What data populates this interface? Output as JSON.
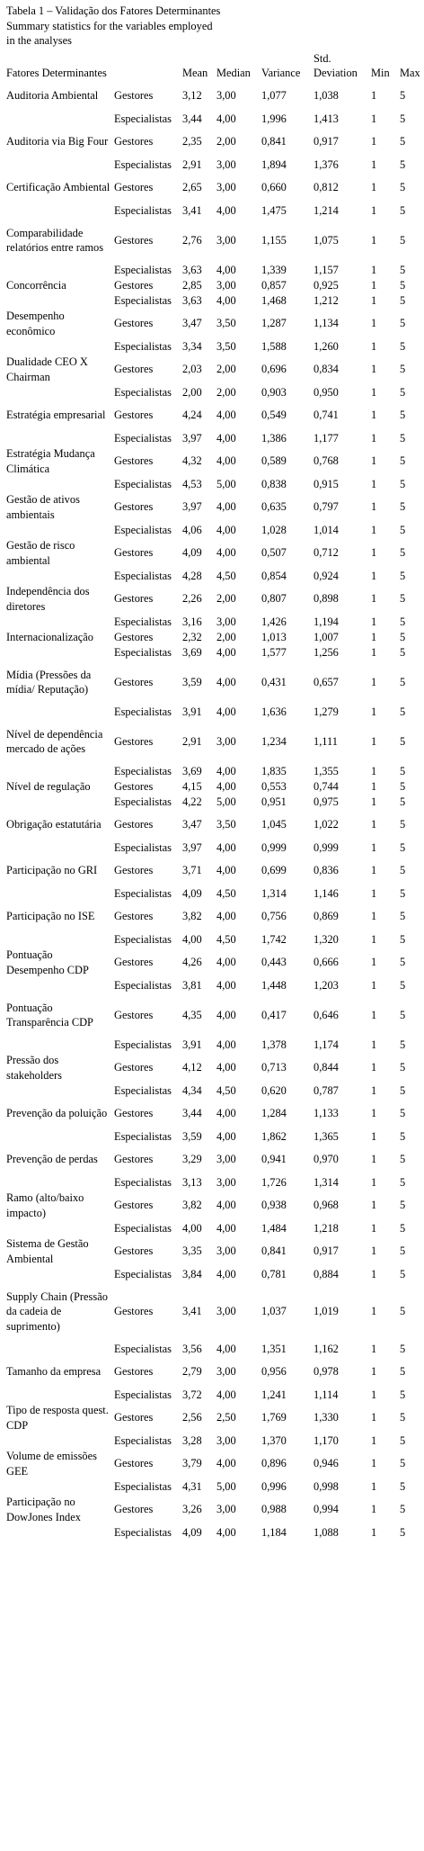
{
  "caption": {
    "line1": "Tabela 1 – Validação dos Fatores Determinantes",
    "line2": "Summary statistics for the variables employed",
    "line3": "in the analyses"
  },
  "columns": [
    "Fatores Determinantes",
    "",
    "Mean",
    "Median",
    "Variance",
    "Std. Deviation",
    "Min",
    "Max"
  ],
  "rows": [
    {
      "factor": "Auditoria Ambiental",
      "group": "Gestores",
      "mean": "3,12",
      "median": "3,00",
      "variance": "1,077",
      "sd": "1,038",
      "min": "1",
      "max": "5"
    },
    {
      "factor": "",
      "group": "Especialistas",
      "mean": "3,44",
      "median": "4,00",
      "variance": "1,996",
      "sd": "1,413",
      "min": "1",
      "max": "5"
    },
    {
      "factor": "Auditoria via Big Four",
      "group": "Gestores",
      "mean": "2,35",
      "median": "2,00",
      "variance": "0,841",
      "sd": "0,917",
      "min": "1",
      "max": "5"
    },
    {
      "factor": "",
      "group": "Especialistas",
      "mean": "2,91",
      "median": "3,00",
      "variance": "1,894",
      "sd": "1,376",
      "min": "1",
      "max": "5"
    },
    {
      "factor": "Certificação Ambiental",
      "group": "Gestores",
      "mean": "2,65",
      "median": "3,00",
      "variance": "0,660",
      "sd": "0,812",
      "min": "1",
      "max": "5"
    },
    {
      "factor": "",
      "group": "Especialistas",
      "mean": "3,41",
      "median": "4,00",
      "variance": "1,475",
      "sd": "1,214",
      "min": "1",
      "max": "5"
    },
    {
      "factor": "Comparabilidade relatórios entre ramos",
      "group": "Gestores",
      "mean": "2,76",
      "median": "3,00",
      "variance": "1,155",
      "sd": "1,075",
      "min": "1",
      "max": "5"
    },
    {
      "factor": "",
      "group": "Especialistas",
      "mean": "3,63",
      "median": "4,00",
      "variance": "1,339",
      "sd": "1,157",
      "min": "1",
      "max": "5"
    },
    {
      "factor": "Concorrência",
      "group": "Gestores",
      "mean": "2,85",
      "median": "3,00",
      "variance": "0,857",
      "sd": "0,925",
      "min": "1",
      "max": "5"
    },
    {
      "factor": "",
      "group": "Especialistas",
      "mean": "3,63",
      "median": "4,00",
      "variance": "1,468",
      "sd": "1,212",
      "min": "1",
      "max": "5"
    },
    {
      "factor": "Desempenho econômico",
      "group": "Gestores",
      "mean": "3,47",
      "median": "3,50",
      "variance": "1,287",
      "sd": "1,134",
      "min": "1",
      "max": "5"
    },
    {
      "factor": "",
      "group": "Especialistas",
      "mean": "3,34",
      "median": "3,50",
      "variance": "1,588",
      "sd": "1,260",
      "min": "1",
      "max": "5"
    },
    {
      "factor": "Dualidade CEO X Chairman",
      "group": "Gestores",
      "mean": "2,03",
      "median": "2,00",
      "variance": "0,696",
      "sd": "0,834",
      "min": "1",
      "max": "5"
    },
    {
      "factor": "",
      "group": "Especialistas",
      "mean": "2,00",
      "median": "2,00",
      "variance": "0,903",
      "sd": "0,950",
      "min": "1",
      "max": "5"
    },
    {
      "factor": "Estratégia empresarial",
      "group": "Gestores",
      "mean": "4,24",
      "median": "4,00",
      "variance": "0,549",
      "sd": "0,741",
      "min": "1",
      "max": "5"
    },
    {
      "factor": "",
      "group": "Especialistas",
      "mean": "3,97",
      "median": "4,00",
      "variance": "1,386",
      "sd": "1,177",
      "min": "1",
      "max": "5"
    },
    {
      "factor": "Estratégia Mudança Climática",
      "group": "Gestores",
      "mean": "4,32",
      "median": "4,00",
      "variance": "0,589",
      "sd": "0,768",
      "min": "1",
      "max": "5"
    },
    {
      "factor": "",
      "group": "Especialistas",
      "mean": "4,53",
      "median": "5,00",
      "variance": "0,838",
      "sd": "0,915",
      "min": "1",
      "max": "5"
    },
    {
      "factor": "Gestão de ativos ambientais",
      "group": "Gestores",
      "mean": "3,97",
      "median": "4,00",
      "variance": "0,635",
      "sd": "0,797",
      "min": "1",
      "max": "5"
    },
    {
      "factor": "",
      "group": "Especialistas",
      "mean": "4,06",
      "median": "4,00",
      "variance": "1,028",
      "sd": "1,014",
      "min": "1",
      "max": "5"
    },
    {
      "factor": "Gestão de risco ambiental",
      "group": "Gestores",
      "mean": "4,09",
      "median": "4,00",
      "variance": "0,507",
      "sd": "0,712",
      "min": "1",
      "max": "5"
    },
    {
      "factor": "",
      "group": "Especialistas",
      "mean": "4,28",
      "median": "4,50",
      "variance": "0,854",
      "sd": "0,924",
      "min": "1",
      "max": "5"
    },
    {
      "factor": "Independência dos diretores",
      "group": "Gestores",
      "mean": "2,26",
      "median": "2,00",
      "variance": "0,807",
      "sd": "0,898",
      "min": "1",
      "max": "5"
    },
    {
      "factor": "",
      "group": "Especialistas",
      "mean": "3,16",
      "median": "3,00",
      "variance": "1,426",
      "sd": "1,194",
      "min": "1",
      "max": "5"
    },
    {
      "factor": "Internacionalização",
      "group": "Gestores",
      "mean": "2,32",
      "median": "2,00",
      "variance": "1,013",
      "sd": "1,007",
      "min": "1",
      "max": "5"
    },
    {
      "factor": "",
      "group": "Especialistas",
      "mean": "3,69",
      "median": "4,00",
      "variance": "1,577",
      "sd": "1,256",
      "min": "1",
      "max": "5"
    },
    {
      "factor": "Mídia (Pressões da mídia/ Reputação)",
      "group": "Gestores",
      "mean": "3,59",
      "median": "4,00",
      "variance": "0,431",
      "sd": "0,657",
      "min": "1",
      "max": "5"
    },
    {
      "factor": "",
      "group": "Especialistas",
      "mean": "3,91",
      "median": "4,00",
      "variance": "1,636",
      "sd": "1,279",
      "min": "1",
      "max": "5"
    },
    {
      "factor": "Nível de dependência mercado de ações",
      "group": "Gestores",
      "mean": "2,91",
      "median": "3,00",
      "variance": "1,234",
      "sd": "1,111",
      "min": "1",
      "max": "5"
    },
    {
      "factor": "",
      "group": "Especialistas",
      "mean": "3,69",
      "median": "4,00",
      "variance": "1,835",
      "sd": "1,355",
      "min": "1",
      "max": "5"
    },
    {
      "factor": "Nível de regulação",
      "group": "Gestores",
      "mean": "4,15",
      "median": "4,00",
      "variance": "0,553",
      "sd": "0,744",
      "min": "1",
      "max": "5"
    },
    {
      "factor": "",
      "group": "Especialistas",
      "mean": "4,22",
      "median": "5,00",
      "variance": "0,951",
      "sd": "0,975",
      "min": "1",
      "max": "5"
    },
    {
      "factor": "Obrigação estatutária",
      "group": "Gestores",
      "mean": "3,47",
      "median": "3,50",
      "variance": "1,045",
      "sd": "1,022",
      "min": "1",
      "max": "5"
    },
    {
      "factor": "",
      "group": "Especialistas",
      "mean": "3,97",
      "median": "4,00",
      "variance": "0,999",
      "sd": "0,999",
      "min": "1",
      "max": "5"
    },
    {
      "factor": "Participação no GRI",
      "group": "Gestores",
      "mean": "3,71",
      "median": "4,00",
      "variance": "0,699",
      "sd": "0,836",
      "min": "1",
      "max": "5"
    },
    {
      "factor": "",
      "group": "Especialistas",
      "mean": "4,09",
      "median": "4,50",
      "variance": "1,314",
      "sd": "1,146",
      "min": "1",
      "max": "5"
    },
    {
      "factor": "Participação no ISE",
      "group": "Gestores",
      "mean": "3,82",
      "median": "4,00",
      "variance": "0,756",
      "sd": "0,869",
      "min": "1",
      "max": "5"
    },
    {
      "factor": "",
      "group": "Especialistas",
      "mean": "4,00",
      "median": "4,50",
      "variance": "1,742",
      "sd": "1,320",
      "min": "1",
      "max": "5"
    },
    {
      "factor": "Pontuação Desempenho CDP",
      "group": "Gestores",
      "mean": "4,26",
      "median": "4,00",
      "variance": "0,443",
      "sd": "0,666",
      "min": "1",
      "max": "5"
    },
    {
      "factor": "",
      "group": "Especialistas",
      "mean": "3,81",
      "median": "4,00",
      "variance": "1,448",
      "sd": "1,203",
      "min": "1",
      "max": "5"
    },
    {
      "factor": "Pontuação Transparência CDP",
      "group": "Gestores",
      "mean": "4,35",
      "median": "4,00",
      "variance": "0,417",
      "sd": "0,646",
      "min": "1",
      "max": "5"
    },
    {
      "factor": "",
      "group": "Especialistas",
      "mean": "3,91",
      "median": "4,00",
      "variance": "1,378",
      "sd": "1,174",
      "min": "1",
      "max": "5"
    },
    {
      "factor": "Pressão dos stakeholders",
      "group": "Gestores",
      "mean": "4,12",
      "median": "4,00",
      "variance": "0,713",
      "sd": "0,844",
      "min": "1",
      "max": "5"
    },
    {
      "factor": "",
      "group": "Especialistas",
      "mean": "4,34",
      "median": "4,50",
      "variance": "0,620",
      "sd": "0,787",
      "min": "1",
      "max": "5"
    },
    {
      "factor": "Prevenção da poluição",
      "group": "Gestores",
      "mean": "3,44",
      "median": "4,00",
      "variance": "1,284",
      "sd": "1,133",
      "min": "1",
      "max": "5"
    },
    {
      "factor": "",
      "group": "Especialistas",
      "mean": "3,59",
      "median": "4,00",
      "variance": "1,862",
      "sd": "1,365",
      "min": "1",
      "max": "5"
    },
    {
      "factor": "Prevenção de perdas",
      "group": "Gestores",
      "mean": "3,29",
      "median": "3,00",
      "variance": "0,941",
      "sd": "0,970",
      "min": "1",
      "max": "5"
    },
    {
      "factor": "",
      "group": "Especialistas",
      "mean": "3,13",
      "median": "3,00",
      "variance": "1,726",
      "sd": "1,314",
      "min": "1",
      "max": "5"
    },
    {
      "factor": "Ramo (alto/baixo impacto)",
      "group": "Gestores",
      "mean": "3,82",
      "median": "4,00",
      "variance": "0,938",
      "sd": "0,968",
      "min": "1",
      "max": "5"
    },
    {
      "factor": "",
      "group": "Especialistas",
      "mean": "4,00",
      "median": "4,00",
      "variance": "1,484",
      "sd": "1,218",
      "min": "1",
      "max": "5"
    },
    {
      "factor": "Sistema de Gestão Ambiental",
      "group": "Gestores",
      "mean": "3,35",
      "median": "3,00",
      "variance": "0,841",
      "sd": "0,917",
      "min": "1",
      "max": "5"
    },
    {
      "factor": "",
      "group": "Especialistas",
      "mean": "3,84",
      "median": "4,00",
      "variance": "0,781",
      "sd": "0,884",
      "min": "1",
      "max": "5"
    },
    {
      "factor": "Supply Chain (Pressão da cadeia de suprimento)",
      "group": "Gestores",
      "mean": "3,41",
      "median": "3,00",
      "variance": "1,037",
      "sd": "1,019",
      "min": "1",
      "max": "5"
    },
    {
      "factor": "",
      "group": "Especialistas",
      "mean": "3,56",
      "median": "4,00",
      "variance": "1,351",
      "sd": "1,162",
      "min": "1",
      "max": "5"
    },
    {
      "factor": "Tamanho da empresa",
      "group": "Gestores",
      "mean": "2,79",
      "median": "3,00",
      "variance": "0,956",
      "sd": "0,978",
      "min": "1",
      "max": "5"
    },
    {
      "factor": "",
      "group": "Especialistas",
      "mean": "3,72",
      "median": "4,00",
      "variance": "1,241",
      "sd": "1,114",
      "min": "1",
      "max": "5"
    },
    {
      "factor": "Tipo de resposta quest. CDP",
      "group": "Gestores",
      "mean": "2,56",
      "median": "2,50",
      "variance": "1,769",
      "sd": "1,330",
      "min": "1",
      "max": "5"
    },
    {
      "factor": "",
      "group": "Especialistas",
      "mean": "3,28",
      "median": "3,00",
      "variance": "1,370",
      "sd": "1,170",
      "min": "1",
      "max": "5"
    },
    {
      "factor": "Volume de emissões GEE",
      "group": "Gestores",
      "mean": "3,79",
      "median": "4,00",
      "variance": "0,896",
      "sd": "0,946",
      "min": "1",
      "max": "5"
    },
    {
      "factor": "",
      "group": "Especialistas",
      "mean": "4,31",
      "median": "5,00",
      "variance": "0,996",
      "sd": "0,998",
      "min": "1",
      "max": "5"
    },
    {
      "factor": "Participação no DowJones Index",
      "group": "Gestores",
      "mean": "3,26",
      "median": "3,00",
      "variance": "0,988",
      "sd": "0,994",
      "min": "1",
      "max": "5"
    },
    {
      "factor": "",
      "group": "Especialistas",
      "mean": "4,09",
      "median": "4,00",
      "variance": "1,184",
      "sd": "1,088",
      "min": "1",
      "max": "5"
    }
  ]
}
